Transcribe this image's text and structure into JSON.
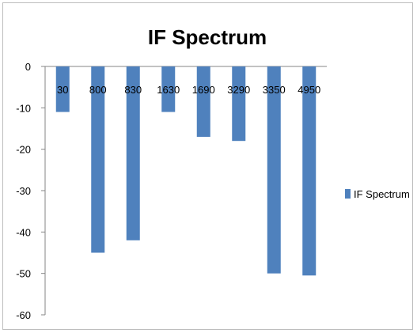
{
  "chart_data": {
    "type": "bar",
    "title": "IF Spectrum",
    "xlabel": "",
    "ylabel": "",
    "categories": [
      "30",
      "800",
      "830",
      "1630",
      "1690",
      "3290",
      "3350",
      "4950"
    ],
    "series": [
      {
        "name": "IF Spectrum",
        "values": [
          -11,
          -45,
          -42,
          -11,
          -17,
          -18,
          -50,
          -50.5
        ]
      }
    ],
    "ylim": [
      -60,
      0
    ],
    "yticks": [
      0,
      -10,
      -20,
      -30,
      -40,
      -50,
      -60
    ],
    "grid": false,
    "legend_position": "right",
    "colors": {
      "bar": "#4f81bd",
      "axis": "#868686"
    }
  }
}
